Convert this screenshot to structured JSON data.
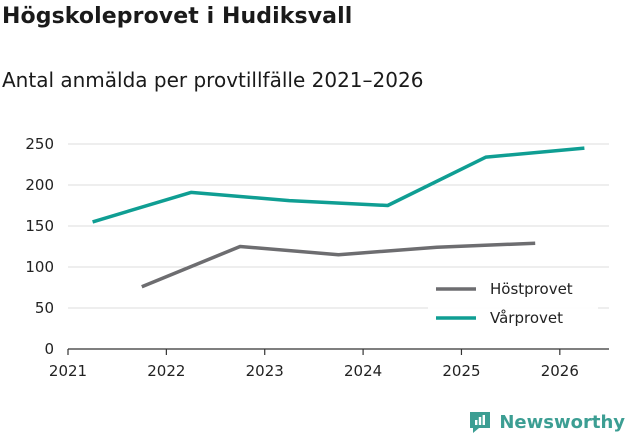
{
  "chart_data": {
    "type": "line",
    "title": "Högskoleprovet i Hudiksvall",
    "subtitle": "Antal anmälda per provtillfälle 2021–2026",
    "xlabel": "",
    "ylabel": "",
    "xlim": [
      2021,
      2026.5
    ],
    "ylim": [
      0,
      250
    ],
    "x_ticks": [
      2021,
      2022,
      2023,
      2024,
      2025,
      2026
    ],
    "y_ticks": [
      0,
      50,
      100,
      150,
      200,
      250
    ],
    "grid": true,
    "legend_position": "bottom-right",
    "series": [
      {
        "name": "Höstprovet",
        "color": "#6d6d70",
        "x": [
          2021.75,
          2022.75,
          2023.75,
          2024.75,
          2025.75
        ],
        "values": [
          76,
          125,
          115,
          124,
          129
        ]
      },
      {
        "name": "Vårprovet",
        "color": "#0f9e93",
        "x": [
          2021.25,
          2022.25,
          2023.25,
          2024.25,
          2025.25,
          2026.25
        ],
        "values": [
          155,
          191,
          181,
          175,
          234,
          245
        ]
      }
    ]
  },
  "brand": {
    "name": "Newsworthy",
    "color": "#3c9e93"
  }
}
